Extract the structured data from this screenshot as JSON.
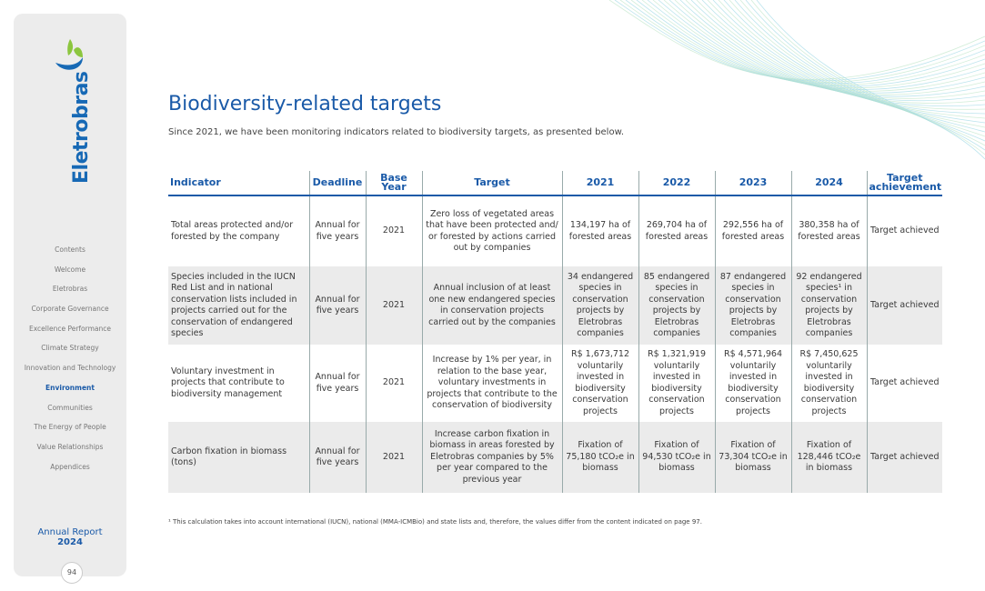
{
  "sidebar": {
    "brand": "Eletrobras",
    "nav": [
      "Contents",
      "Welcome",
      "Eletrobras",
      "Corporate Governance",
      "Excellence Performance",
      "Climate Strategy",
      "Innovation and Technology",
      "Environment",
      "Communities",
      "The Energy of People",
      "Value Relationships",
      "Appendices"
    ],
    "report": "Annual Report",
    "year": "2024",
    "page": "94"
  },
  "header": {
    "title": "Biodiversity-related targets",
    "subtitle": "Since 2021, we have been monitoring indicators related to biodiversity targets, as presented below."
  },
  "table": {
    "columns": [
      "Indicator",
      "Deadline",
      "Base Year",
      "Target",
      "2021",
      "2022",
      "2023",
      "2024",
      "Target achievement"
    ],
    "rows": [
      [
        "Total areas protected and/or forested by the company",
        "Annual for five years",
        "2021",
        "Zero loss of vegetated areas that have been protected and/ or forested by actions carried out by companies",
        "134,197 ha of forested areas",
        "269,704 ha of forested areas",
        "292,556 ha of forested areas",
        "380,358 ha of forested areas",
        "Target achieved"
      ],
      [
        "Species included in the IUCN Red List and in national conservation lists included in projects carried out for the conservation of endangered species",
        "Annual for five years",
        "2021",
        "Annual inclusion of at least one new endangered species in conservation projects carried out by the companies",
        "34 endangered species in conservation projects by Eletrobras companies",
        "85 endangered species in conservation projects by Eletrobras companies",
        "87 endangered species in conservation projects by Eletrobras companies",
        "92 endangered species¹ in conservation projects by Eletrobras companies",
        "Target achieved"
      ],
      [
        "Voluntary investment in projects that contribute to biodiversity management",
        "Annual for five years",
        "2021",
        "Increase by 1% per year, in relation to the base year, voluntary investments in projects that contribute to the conservation of biodiversity",
        "R$ 1,673,712 voluntarily invested in biodiversity conservation projects",
        "R$ 1,321,919 voluntarily invested in biodiversity conservation projects",
        "R$ 4,571,964 voluntarily invested in biodiversity conservation projects",
        "R$ 7,450,625 voluntarily invested in biodiversity conservation projects",
        "Target achieved"
      ],
      [
        "Carbon fixation in biomass (tons)",
        "Annual for five years",
        "2021",
        "Increase carbon fixation in biomass in areas forested by Eletrobras companies by 5% per year compared to the previous year",
        "Fixation of 75,180 tCO₂e in biomass",
        "Fixation of 94,530 tCO₂e in biomass",
        "Fixation of 73,304 tCO₂e in biomass",
        "Fixation of 128,446 tCO₂e in biomass",
        "Target achieved"
      ]
    ]
  },
  "footnote": "¹ This calculation takes into account international (IUCN), national (MMA-ICMBio) and state lists and, therefore, the values differ from the content indicated on page 97."
}
